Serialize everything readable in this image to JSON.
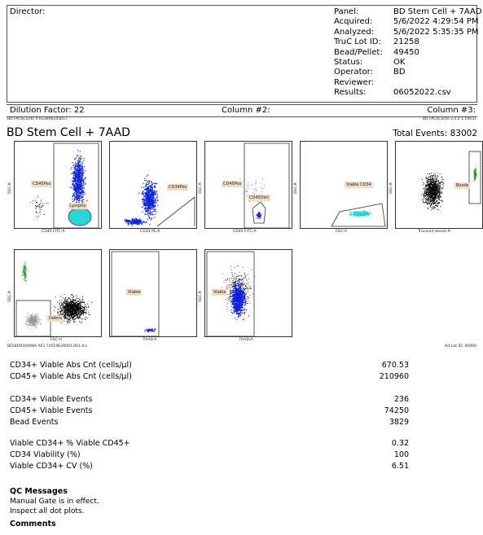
{
  "header": {
    "director_label": "Director:",
    "fields": [
      {
        "k": "Panel:",
        "v": "BD Stem Cell + 7AAD"
      },
      {
        "k": "Acquired:",
        "v": "5/6/2022 4:29:54 PM"
      },
      {
        "k": "Analyzed:",
        "v": "5/6/2022 5:35:35 PM"
      },
      {
        "k": "TruC Lot ID:",
        "v": "21258"
      },
      {
        "k": "Bead/Pellet:",
        "v": "49450"
      },
      {
        "k": "Status:",
        "v": "OK"
      },
      {
        "k": "Operator:",
        "v": "BD"
      },
      {
        "k": "Reviewer:",
        "v": ""
      },
      {
        "k": "Results:",
        "v": "06052022.csv"
      }
    ]
  },
  "strip": {
    "dilution": "Dilution Factor: 22",
    "column2": "Column #2:",
    "column3": "Column #3:",
    "instrument": "BD FACSCanto II R33896203017",
    "software": "BD FACSCanto v.4.0.1.19031"
  },
  "report": {
    "title": "BD Stem Cell + 7AAD",
    "total_events": "Total Events: 83002"
  },
  "plots": {
    "p1": {
      "x": "CD45 FITC-A",
      "y": "SSC-A",
      "gates": [
        "CD45Pos",
        "Lymphs"
      ]
    },
    "p2": {
      "x": "CD34 PE-A",
      "y": "",
      "gates": [
        "CD34Pos"
      ]
    },
    "p3": {
      "x": "CD45 FITC-A",
      "y": "SSC-A",
      "gates": [
        "CD45Pos",
        "CD45Dim"
      ]
    },
    "p4": {
      "x": "FSC-H",
      "y": "SSC-A",
      "gates": [
        "Viable CD34"
      ]
    },
    "p5": {
      "x": "Trucount beads-A",
      "y": "SSC-A",
      "gates": [
        "Beads"
      ]
    },
    "p6": {
      "x": "FSC-H",
      "y": "SSC-A",
      "gates": [
        "Debris"
      ]
    },
    "p7": {
      "x": "7AAD-A",
      "y": "",
      "gates": [
        "Viable"
      ]
    },
    "p8": {
      "x": "7AAD-A",
      "y": "SSC-A",
      "gates": [
        "Viable"
      ]
    }
  },
  "sample": {
    "file": "BESKOROVAINA AF2 74519639001.001.fcs",
    "kit_lot": "Kit Lot ID: 00000"
  },
  "results": [
    {
      "label": "CD34+ Viable Abs Cnt (cells/µl)",
      "value": "670.53"
    },
    {
      "label": "CD45+ Viable Abs Cnt (cells/µl)",
      "value": "210960"
    },
    {
      "label": "CD34+ Viable Events",
      "value": "236"
    },
    {
      "label": "CD45+ Viable Events",
      "value": "74250"
    },
    {
      "label": "Bead Events",
      "value": "3829"
    },
    {
      "label": "Viable CD34+ % Viable CD45+",
      "value": "0.32"
    },
    {
      "label": "CD34 Viability (%)",
      "value": "100"
    },
    {
      "label": "Viable CD34+ CV (%)",
      "value": "6.51"
    }
  ],
  "qc": {
    "heading": "QC Messages",
    "lines": [
      "Manual Gate is in effect.",
      "Inspect all dot plots."
    ],
    "comments": "Comments"
  },
  "colors": {
    "blue": "#0a1fe0",
    "cyan": "#27d6d6",
    "green": "#1c8f1c",
    "gray": "#9a9a9a",
    "red": "#cc2020",
    "label_bg": "#f2dcc6"
  }
}
